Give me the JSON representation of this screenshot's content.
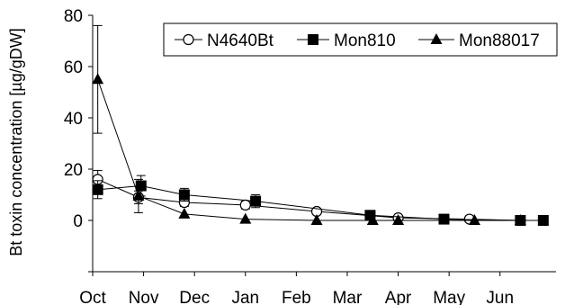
{
  "chart_data": {
    "type": "line",
    "title": "",
    "xlabel": "",
    "ylabel": "Bt toxin concentration [µg/gDW]",
    "ylim": [
      -20,
      80
    ],
    "yticks": [
      0,
      20,
      40,
      60,
      80
    ],
    "xlim": [
      0,
      9.1
    ],
    "months": [
      {
        "label": "Oct",
        "pos": 0
      },
      {
        "label": "Nov",
        "pos": 1
      },
      {
        "label": "Dec",
        "pos": 2
      },
      {
        "label": "Jan",
        "pos": 3
      },
      {
        "label": "Feb",
        "pos": 4
      },
      {
        "label": "Mar",
        "pos": 5
      },
      {
        "label": "Apr",
        "pos": 6
      },
      {
        "label": "May",
        "pos": 7
      },
      {
        "label": "Jun",
        "pos": 8
      }
    ],
    "grid": false,
    "legend_position": "top-right",
    "series": [
      {
        "name": "N4640Bt",
        "marker": "open-circle",
        "points": [
          {
            "x": 0.1,
            "y": 16,
            "err": 3.5
          },
          {
            "x": 0.9,
            "y": 9,
            "err": 2.5
          },
          {
            "x": 1.8,
            "y": 7,
            "err": 1.5
          },
          {
            "x": 3.0,
            "y": 6,
            "err": 1.5
          },
          {
            "x": 4.4,
            "y": 3.5
          },
          {
            "x": 6.0,
            "y": 1
          },
          {
            "x": 7.4,
            "y": 0.5
          },
          {
            "x": 8.4,
            "y": 0
          }
        ]
      },
      {
        "name": "Mon810",
        "marker": "filled-square",
        "points": [
          {
            "x": 0.1,
            "y": 12,
            "err": 3.5
          },
          {
            "x": 0.95,
            "y": 13.5,
            "err": 4
          },
          {
            "x": 1.8,
            "y": 10,
            "err": 2.5
          },
          {
            "x": 3.2,
            "y": 7.5,
            "err": 2.5
          },
          {
            "x": 5.45,
            "y": 2
          },
          {
            "x": 6.9,
            "y": 0.5
          },
          {
            "x": 8.4,
            "y": 0
          },
          {
            "x": 8.85,
            "y": 0
          }
        ]
      },
      {
        "name": "Mon88017",
        "marker": "filled-triangle",
        "points": [
          {
            "x": 0.1,
            "y": 55,
            "err": 21
          },
          {
            "x": 0.9,
            "y": 9.5,
            "err": 6.5
          },
          {
            "x": 1.8,
            "y": 2.5
          },
          {
            "x": 3.0,
            "y": 0.5
          },
          {
            "x": 4.4,
            "y": 0
          },
          {
            "x": 5.5,
            "y": 0
          },
          {
            "x": 6.0,
            "y": 0
          },
          {
            "x": 7.5,
            "y": 0
          },
          {
            "x": 8.4,
            "y": 0
          }
        ]
      }
    ]
  }
}
